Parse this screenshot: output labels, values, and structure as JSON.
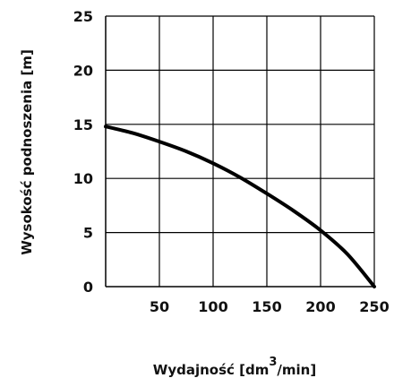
{
  "chart_data": {
    "type": "line",
    "xlabel_base": "Wydajność [dm",
    "xlabel_sup": "3",
    "xlabel_tail": "/min]",
    "ylabel": "Wysokość podnoszenia [m]",
    "xlim": [
      0,
      250
    ],
    "ylim": [
      0,
      25
    ],
    "x_ticks": [
      50,
      100,
      150,
      200,
      250
    ],
    "y_ticks": [
      0,
      5,
      10,
      15,
      20,
      25
    ],
    "grid": true,
    "series": [
      {
        "x": [
          0,
          25,
          50,
          75,
          100,
          125,
          150,
          175,
          200,
          225,
          250
        ],
        "y": [
          14.8,
          14.2,
          13.4,
          12.5,
          11.4,
          10.1,
          8.6,
          7.0,
          5.2,
          3.0,
          0
        ]
      }
    ]
  }
}
